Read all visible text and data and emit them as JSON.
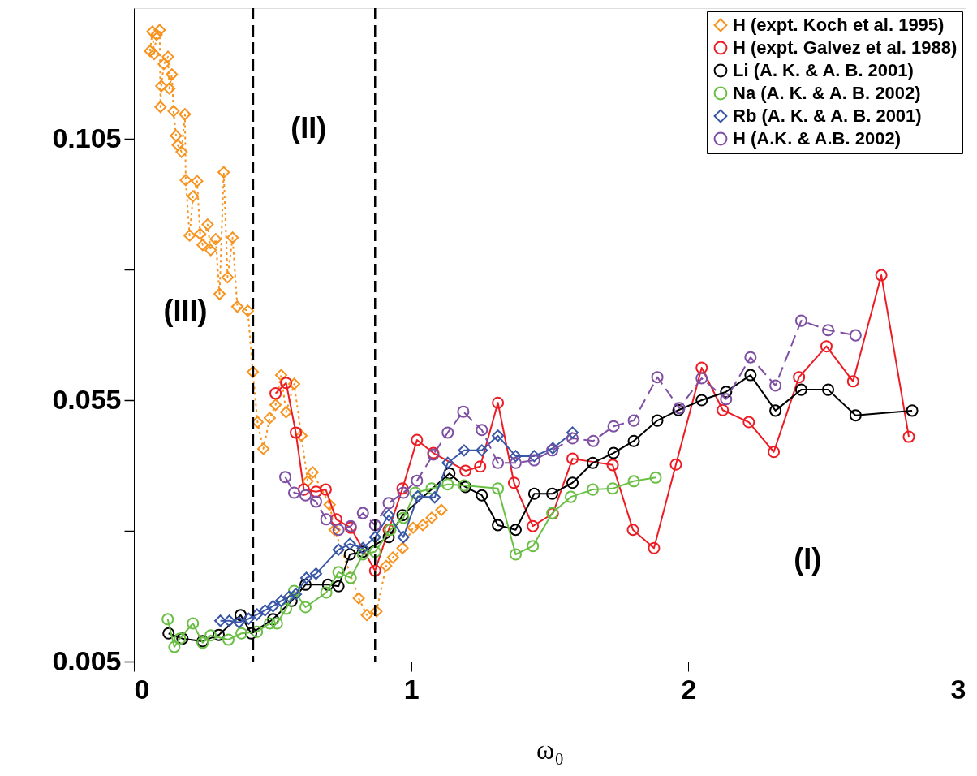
{
  "chart_data": {
    "type": "line",
    "xlabel": "ω₀",
    "xlim": [
      0,
      3
    ],
    "xticks": [
      0,
      1,
      2,
      3
    ],
    "ylim": [
      0.005,
      0.13
    ],
    "yticks": [
      0.005,
      {
        "value": 0.03,
        "label": null
      },
      0.055,
      {
        "value": 0.08,
        "label": null
      },
      0.105
    ],
    "grid": false,
    "legend": "top right",
    "series": [
      {
        "name": "H (expt. Koch et al. 1995)",
        "color": "#f7931e",
        "marker": "diamond",
        "line_style": "dotted",
        "x": [
          0.058,
          0.067,
          0.073,
          0.082,
          0.093,
          0.096,
          0.099,
          0.108,
          0.123,
          0.128,
          0.137,
          0.143,
          0.152,
          0.158,
          0.172,
          0.184,
          0.187,
          0.201,
          0.213,
          0.228,
          0.239,
          0.248,
          0.266,
          0.277,
          0.295,
          0.309,
          0.324,
          0.338,
          0.356,
          0.373,
          0.411,
          0.429,
          0.446,
          0.467,
          0.49,
          0.511,
          0.531,
          0.549,
          0.578,
          0.604,
          0.627,
          0.645,
          0.706,
          0.724,
          0.811,
          0.84,
          0.875,
          0.91,
          0.934,
          0.969,
          1.007,
          1.042,
          1.074,
          1.109
        ],
        "values": [
          0.1218,
          0.1255,
          0.1212,
          0.1249,
          0.1258,
          0.1111,
          0.1151,
          0.1193,
          0.1207,
          0.1146,
          0.1173,
          0.1103,
          0.1056,
          0.1038,
          0.1025,
          0.1097,
          0.0971,
          0.0865,
          0.094,
          0.0969,
          0.0868,
          0.0847,
          0.0886,
          0.0837,
          0.0858,
          0.0753,
          0.0986,
          0.0785,
          0.0861,
          0.0729,
          0.0721,
          0.0604,
          0.0508,
          0.0457,
          0.0516,
          0.0541,
          0.0598,
          0.0527,
          0.0581,
          0.0482,
          0.0395,
          0.0412,
          0.035,
          0.0302,
          0.0171,
          0.0139,
          0.0146,
          0.0233,
          0.0249,
          0.0267,
          0.0306,
          0.0311,
          0.0325,
          0.034
        ]
      },
      {
        "name": "H (expt. Galvez et al. 1988)",
        "color": "#ed1c24",
        "marker": "circle",
        "line_style": "solid",
        "x": [
          0.511,
          0.549,
          0.584,
          0.613,
          0.657,
          0.692,
          0.73,
          0.782,
          0.87,
          0.919,
          0.969,
          1.021,
          1.08,
          1.196,
          1.249,
          1.313,
          1.371,
          1.439,
          1.511,
          1.582,
          1.727,
          1.8,
          1.876,
          1.955,
          2.048,
          2.124,
          2.218,
          2.308,
          2.399,
          2.498,
          2.594,
          2.696,
          2.795
        ],
        "values": [
          0.0563,
          0.0583,
          0.0488,
          0.0379,
          0.0375,
          0.0379,
          0.0322,
          0.0306,
          0.0224,
          0.0302,
          0.0381,
          0.0474,
          0.0449,
          0.0415,
          0.0423,
          0.0545,
          0.0392,
          0.0309,
          0.0333,
          0.0438,
          0.0426,
          0.0302,
          0.0267,
          0.0427,
          0.0612,
          0.0531,
          0.0508,
          0.0451,
          0.0594,
          0.0653,
          0.0586,
          0.0789,
          0.048
        ]
      },
      {
        "name": "Li (A. K. & A. B. 2001)",
        "color": "#000000",
        "marker": "circle",
        "line_style": "solid",
        "x": [
          0.125,
          0.175,
          0.248,
          0.306,
          0.385,
          0.423,
          0.502,
          0.569,
          0.619,
          0.7,
          0.738,
          0.779,
          0.826,
          0.919,
          0.969,
          1.138,
          1.196,
          1.255,
          1.313,
          1.377,
          1.444,
          1.509,
          1.582,
          1.655,
          1.73,
          1.803,
          1.888,
          1.964,
          2.048,
          2.136,
          2.224,
          2.314,
          2.407,
          2.504,
          2.603,
          2.807
        ],
        "values": [
          0.0104,
          0.0094,
          0.0089,
          0.0101,
          0.0139,
          0.0104,
          0.0131,
          0.0166,
          0.0197,
          0.0197,
          0.0194,
          0.0255,
          0.026,
          0.0288,
          0.033,
          0.041,
          0.0384,
          0.0368,
          0.0311,
          0.0302,
          0.0371,
          0.0371,
          0.0392,
          0.043,
          0.0449,
          0.0472,
          0.0511,
          0.0531,
          0.055,
          0.0566,
          0.0598,
          0.053,
          0.057,
          0.057,
          0.0521,
          0.053
        ]
      },
      {
        "name": "Na (A. K. & A. B. 2002)",
        "color": "#6abf45",
        "marker": "circle",
        "line_style": "solid",
        "x": [
          0.122,
          0.146,
          0.166,
          0.213,
          0.248,
          0.277,
          0.341,
          0.388,
          0.444,
          0.49,
          0.516,
          0.549,
          0.578,
          0.619,
          0.694,
          0.738,
          0.782,
          0.826,
          0.87,
          0.925,
          0.972,
          1.015,
          1.074,
          1.132,
          1.191,
          1.313,
          1.377,
          1.439,
          1.509,
          1.576,
          1.655,
          1.727,
          1.803,
          1.882
        ],
        "values": [
          0.0131,
          0.0078,
          0.0094,
          0.0123,
          0.0086,
          0.01,
          0.0092,
          0.0104,
          0.0107,
          0.0123,
          0.0123,
          0.0151,
          0.0185,
          0.0154,
          0.0182,
          0.0221,
          0.021,
          0.0255,
          0.026,
          0.0302,
          0.0325,
          0.0373,
          0.0381,
          0.0389,
          0.0387,
          0.0381,
          0.0255,
          0.0271,
          0.0334,
          0.0365,
          0.0379,
          0.0381,
          0.0395,
          0.0402
        ]
      },
      {
        "name": "Rb (A. K. & A. B. 2001)",
        "color": "#3a57a7",
        "marker": "diamond",
        "line_style": "solid",
        "x": [
          0.312,
          0.344,
          0.379,
          0.414,
          0.444,
          0.473,
          0.502,
          0.531,
          0.56,
          0.584,
          0.622,
          0.657,
          0.738,
          0.779,
          0.826,
          0.87,
          0.919,
          0.972,
          1.024,
          1.085,
          1.132,
          1.191,
          1.255,
          1.313,
          1.377,
          1.444,
          1.511,
          1.582
        ],
        "values": [
          0.0128,
          0.0128,
          0.0125,
          0.0132,
          0.014,
          0.0148,
          0.0156,
          0.0166,
          0.0174,
          0.0179,
          0.021,
          0.0218,
          0.0264,
          0.0275,
          0.0267,
          0.0288,
          0.033,
          0.0288,
          0.0366,
          0.0364,
          0.043,
          0.0454,
          0.0454,
          0.0482,
          0.0443,
          0.0443,
          0.0458,
          0.0488
        ]
      },
      {
        "name": "H (A.K. & A.B. 2002)",
        "color": "#7f4fa3",
        "marker": "circle",
        "line_style": "dashed",
        "x": [
          0.546,
          0.578,
          0.619,
          0.657,
          0.694,
          0.738,
          0.782,
          0.826,
          0.87,
          0.919,
          0.972,
          1.021,
          1.08,
          1.132,
          1.188,
          1.255,
          1.313,
          1.377,
          1.444,
          1.509,
          1.582,
          1.657,
          1.73,
          1.803,
          1.888,
          1.967,
          2.048,
          2.136,
          2.224,
          2.314,
          2.407,
          2.504,
          2.603
        ],
        "values": [
          0.0403,
          0.0373,
          0.0368,
          0.0356,
          0.0322,
          0.0302,
          0.0309,
          0.0334,
          0.0311,
          0.0353,
          0.0373,
          0.0396,
          0.0446,
          0.0488,
          0.0528,
          0.0493,
          0.043,
          0.043,
          0.0435,
          0.0454,
          0.0477,
          0.0472,
          0.05,
          0.0511,
          0.0594,
          0.0535,
          0.0592,
          0.0552,
          0.0632,
          0.0578,
          0.0702,
          0.0684,
          0.0674
        ]
      }
    ],
    "ref_lines": [
      {
        "axis": "x",
        "value": 0.43,
        "color": "#000000",
        "line_style": "dashed"
      },
      {
        "axis": "x",
        "value": 0.87,
        "color": "#000000",
        "line_style": "dashed"
      }
    ],
    "annotations": [
      "(III)",
      "(II)",
      "(I)"
    ]
  }
}
